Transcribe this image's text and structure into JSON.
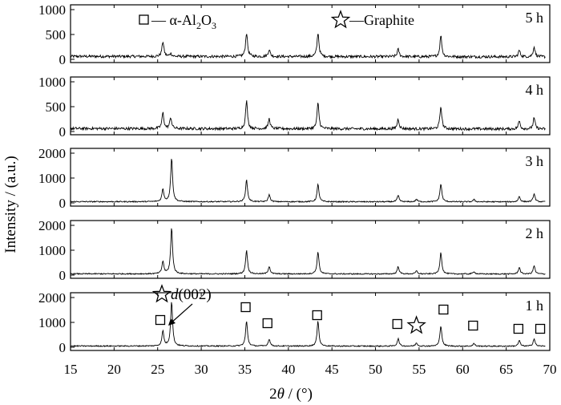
{
  "chart_data": {
    "type": "line",
    "xlabel_main": "2",
    "xlabel_theta": "θ",
    "xlabel_rest": " / (°)",
    "ylabel": "Intensity / (a.u.)",
    "xlim": [
      15,
      70
    ],
    "x_ticks": [
      15,
      20,
      25,
      30,
      35,
      40,
      45,
      50,
      55,
      60,
      65,
      70
    ],
    "legend": {
      "alumina_prefix": "— α-Al",
      "alumina_sub1": "2",
      "alumina_mid": "O",
      "alumina_sub2": "3",
      "graphite": "—Graphite"
    },
    "annotation": {
      "d": "d",
      "rest": "(002)"
    },
    "alumina_marker_positions": [
      25.3,
      35.1,
      37.6,
      43.3,
      52.5,
      57.8,
      61.2,
      66.4,
      68.9
    ],
    "graphite_marker_position": 54.7,
    "panels": [
      {
        "name": "5 h",
        "ylim": [
          0,
          1000
        ],
        "y_ticks": [
          0,
          500,
          1000
        ],
        "baseline": 60,
        "peaks": [
          [
            25.6,
            300
          ],
          [
            26.5,
            60
          ],
          [
            35.2,
            480
          ],
          [
            37.8,
            140
          ],
          [
            43.4,
            480
          ],
          [
            52.6,
            150
          ],
          [
            57.5,
            430
          ],
          [
            66.5,
            130
          ],
          [
            68.2,
            200
          ]
        ]
      },
      {
        "name": "4 h",
        "ylim": [
          0,
          1000
        ],
        "y_ticks": [
          0,
          500,
          1000
        ],
        "baseline": 60,
        "peaks": [
          [
            25.6,
            320
          ],
          [
            26.5,
            220
          ],
          [
            35.2,
            560
          ],
          [
            37.8,
            200
          ],
          [
            43.4,
            520
          ],
          [
            52.6,
            200
          ],
          [
            57.5,
            450
          ],
          [
            66.5,
            160
          ],
          [
            68.2,
            220
          ]
        ]
      },
      {
        "name": "3 h",
        "ylim": [
          0,
          2000
        ],
        "y_ticks": [
          0,
          1000,
          2000
        ],
        "baseline": 50,
        "peaks": [
          [
            25.6,
            500
          ],
          [
            26.6,
            1750
          ],
          [
            35.2,
            880
          ],
          [
            37.8,
            280
          ],
          [
            43.4,
            700
          ],
          [
            52.6,
            250
          ],
          [
            54.7,
            100
          ],
          [
            57.5,
            720
          ],
          [
            61.3,
            90
          ],
          [
            66.5,
            220
          ],
          [
            68.2,
            320
          ]
        ]
      },
      {
        "name": "2 h",
        "ylim": [
          0,
          2000
        ],
        "y_ticks": [
          0,
          1000,
          2000
        ],
        "baseline": 50,
        "peaks": [
          [
            25.6,
            500
          ],
          [
            26.6,
            1850
          ],
          [
            35.2,
            950
          ],
          [
            37.8,
            300
          ],
          [
            43.4,
            900
          ],
          [
            52.6,
            300
          ],
          [
            54.7,
            120
          ],
          [
            57.5,
            870
          ],
          [
            61.3,
            100
          ],
          [
            66.5,
            270
          ],
          [
            68.2,
            330
          ]
        ]
      },
      {
        "name": "1 h",
        "ylim": [
          0,
          2000
        ],
        "y_ticks": [
          0,
          1000,
          2000
        ],
        "baseline": 50,
        "peaks": [
          [
            25.6,
            600
          ],
          [
            26.6,
            1800
          ],
          [
            35.2,
            1000
          ],
          [
            37.8,
            280
          ],
          [
            43.4,
            1000
          ],
          [
            52.6,
            300
          ],
          [
            54.7,
            130
          ],
          [
            57.5,
            830
          ],
          [
            61.3,
            110
          ],
          [
            66.5,
            230
          ],
          [
            68.2,
            300
          ]
        ]
      }
    ]
  }
}
